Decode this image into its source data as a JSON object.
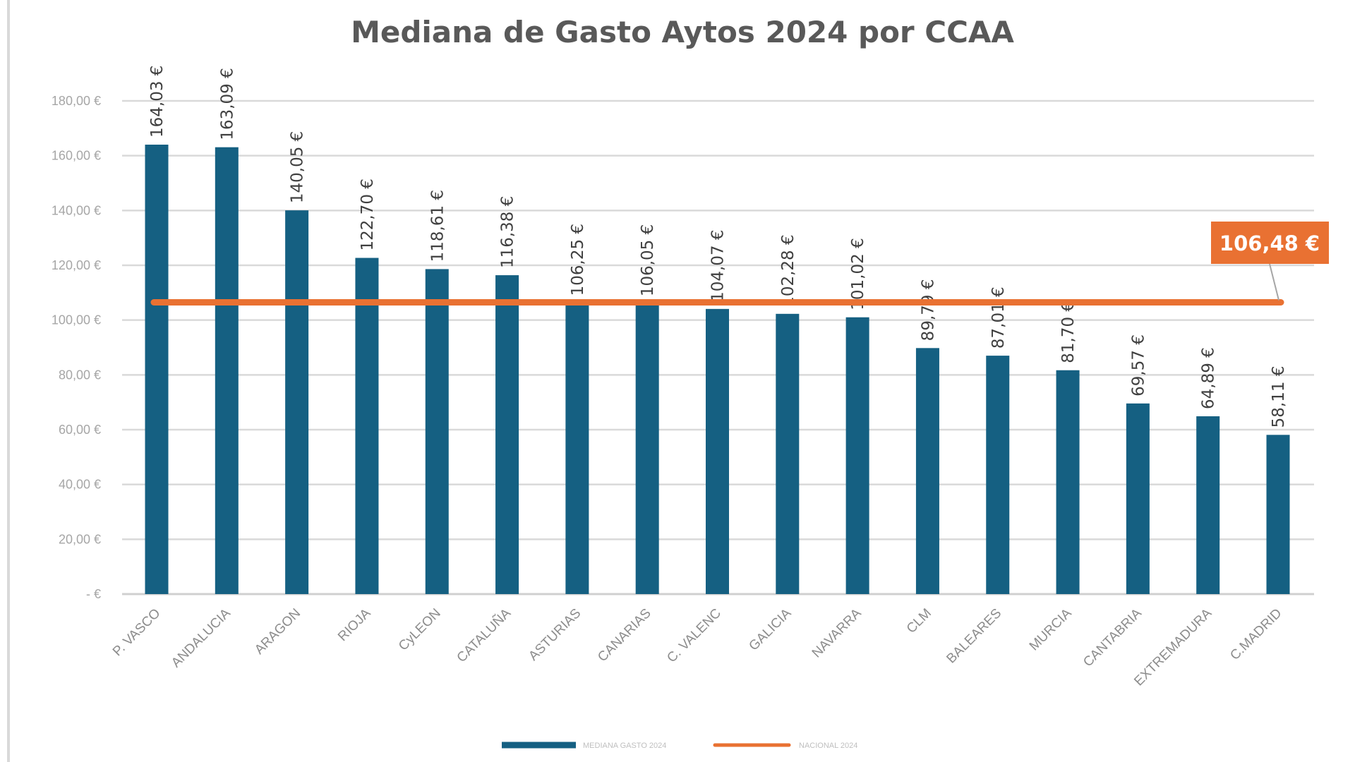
{
  "chart_data": {
    "type": "bar",
    "title": "Mediana de Gasto Aytos 2024  por CCAA",
    "categories": [
      "P. VASCO",
      "ANDALUCIA",
      "ARAGON",
      "RIOJA",
      "CyLEON",
      "CATALUÑA",
      "ASTURIAS",
      "CANARIAS",
      "C. VALENC",
      "GALICIA",
      "NAVARRA",
      "CLM",
      "BALEARES",
      "MURCIA",
      "CANTABRIA",
      "EXTREMADURA",
      "C.MADRID"
    ],
    "series": [
      {
        "name": "MEDIANA GASTO 2024",
        "type": "bar",
        "color": "#156082",
        "values": [
          164.03,
          163.09,
          140.05,
          122.7,
          118.61,
          116.38,
          106.25,
          106.05,
          104.07,
          102.28,
          101.02,
          89.79,
          87.01,
          81.7,
          69.57,
          64.89,
          58.11
        ],
        "data_labels": [
          "164,03 €",
          "163,09 €",
          "140,05 €",
          "122,70 €",
          "118,61 €",
          "116,38 €",
          "106,25 €",
          "106,05 €",
          "104,07 €",
          "102,28 €",
          "101,02 €",
          "89,79 €",
          "87,01 €",
          "81,70 €",
          "69,57 €",
          "64,89 €",
          "58,11 €"
        ]
      },
      {
        "name": "NACIONAL 2024",
        "type": "line",
        "color": "#E97132",
        "value": 106.48,
        "callout_label": "106,48 €"
      }
    ],
    "ylim": [
      0,
      180
    ],
    "yticks": [
      0,
      20,
      40,
      60,
      80,
      100,
      120,
      140,
      160,
      180
    ],
    "ytick_labels": [
      "-  €",
      "20,00 €",
      "40,00 €",
      "60,00 €",
      "80,00 €",
      "100,00 €",
      "120,00 €",
      "140,00 €",
      "160,00 €",
      "180,00 €"
    ],
    "grid": true,
    "legend_position": "bottom",
    "xlabel": "",
    "ylabel": ""
  }
}
